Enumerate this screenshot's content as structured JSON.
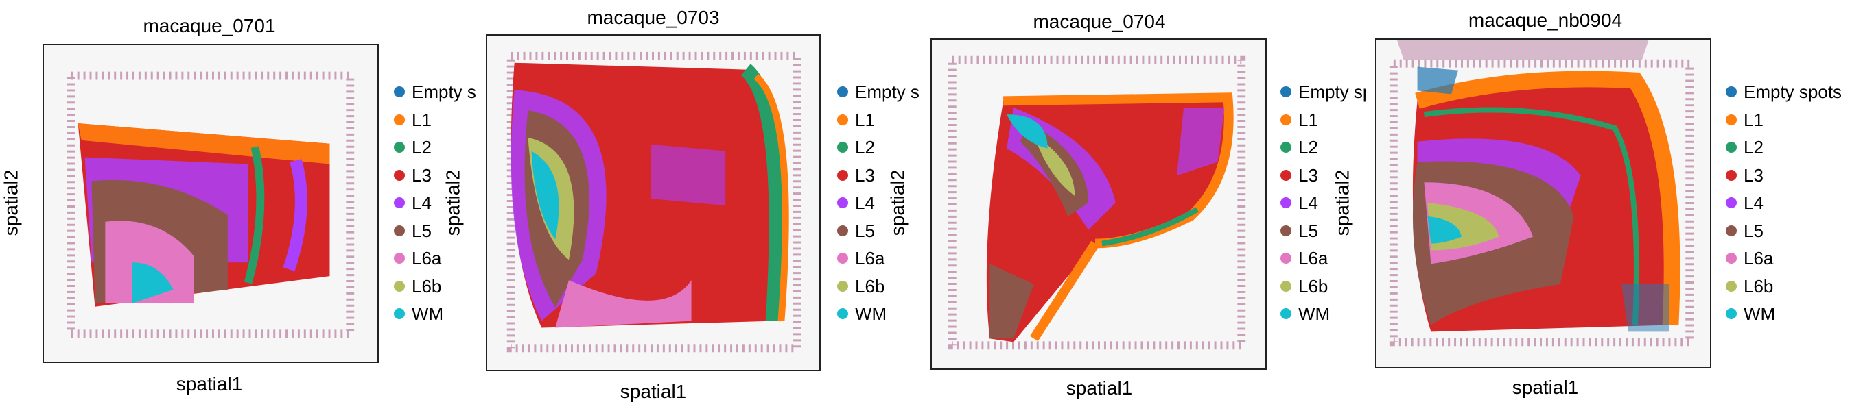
{
  "panels": [
    {
      "title": "macaque_0701",
      "xlabel": "spatial1",
      "ylabel": "spatial2",
      "legend": [
        "Empty sp",
        "L1",
        "L2",
        "L3",
        "L4",
        "L5",
        "L6a",
        "L6b",
        "WM"
      ]
    },
    {
      "title": "macaque_0703",
      "xlabel": "spatial1",
      "ylabel": "spatial2",
      "legend": [
        "Empty sp",
        "L1",
        "L2",
        "L3",
        "L4",
        "L5",
        "L6a",
        "L6b",
        "WM"
      ]
    },
    {
      "title": "macaque_0704",
      "xlabel": "spatial1",
      "ylabel": "spatial2",
      "legend": [
        "Empty sp",
        "L1",
        "L2",
        "L3",
        "L4",
        "L5",
        "L6a",
        "L6b",
        "WM"
      ]
    },
    {
      "title": "macaque_nb0904",
      "xlabel": "spatial1",
      "ylabel": "spatial2",
      "legend": [
        "Empty spots",
        "L1",
        "L2",
        "L3",
        "L4",
        "L5",
        "L6a",
        "L6b",
        "WM"
      ]
    }
  ],
  "colors": {
    "empty": "#1f77b4",
    "L1": "#ff7f0e",
    "L2": "#279e68",
    "L3": "#d62728",
    "L4": "#aa40fc",
    "L5": "#8c564b",
    "L6a": "#e377c2",
    "L6b": "#b5bd61",
    "WM": "#17becf",
    "tissue": "#c9a0b8"
  }
}
